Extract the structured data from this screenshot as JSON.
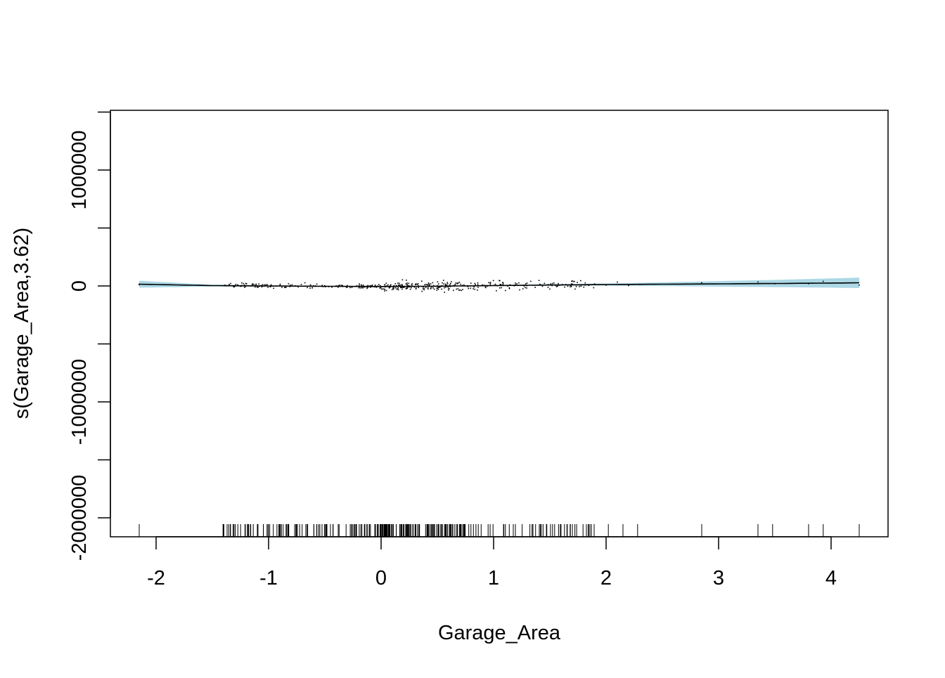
{
  "chart_data": {
    "type": "line",
    "title": "",
    "xlabel": "Garage_Area",
    "ylabel": "s(Garage_Area,3.62)",
    "xlim": [
      -2.4,
      4.5
    ],
    "ylim": [
      -2150000,
      1500000
    ],
    "x_ticks": [
      -2,
      -1,
      0,
      1,
      2,
      3,
      4
    ],
    "x_tick_labels": [
      "-2",
      "-1",
      "0",
      "1",
      "2",
      "3",
      "4"
    ],
    "y_ticks": [
      -2000000,
      -1500000,
      -1000000,
      -500000,
      0,
      500000,
      1000000,
      1500000
    ],
    "y_tick_labels": [
      "-2000000",
      "",
      "-1000000",
      "",
      "0",
      "",
      "1000000",
      ""
    ],
    "grid": false,
    "colors": {
      "band": "#add8e6",
      "line": "#000000",
      "points": "#000000"
    },
    "series": [
      {
        "kind": "smooth",
        "x": [
          -2.15,
          -1.5,
          -1.0,
          -0.5,
          0.0,
          0.5,
          1.0,
          1.5,
          2.0,
          2.5,
          3.0,
          3.5,
          4.0,
          4.25
        ],
        "values": [
          15000,
          3000,
          0,
          -3000,
          -5000,
          -2000,
          3000,
          8000,
          12000,
          15000,
          18000,
          21000,
          25000,
          27000
        ],
        "lower": [
          -15000,
          -5000,
          -4000,
          -5000,
          -8000,
          -6000,
          -2000,
          2000,
          3000,
          -1000,
          -6000,
          -10000,
          -15000,
          -18000
        ],
        "upper": [
          45000,
          11000,
          4000,
          -1000,
          -2000,
          2000,
          8000,
          14000,
          21000,
          31000,
          42000,
          52000,
          65000,
          72000
        ]
      }
    ],
    "partial_residuals_range": {
      "x": [
        -2.15,
        4.25
      ],
      "y": [
        -120000,
        140000
      ]
    },
    "rug_x_range": [
      -2.15,
      4.25
    ]
  }
}
